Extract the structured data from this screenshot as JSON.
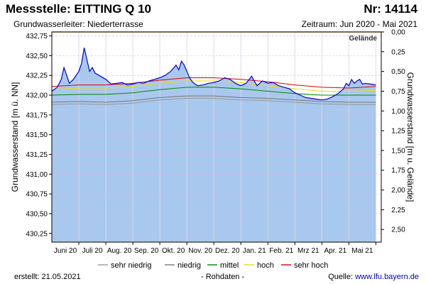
{
  "header": {
    "title": "Messstelle: EITTING Q 10",
    "nr": "Nr: 14114",
    "aquifer": "Grundwasserleiter:   Niederterrasse",
    "period": "Zeitraum: Jun 2020 - Mai 2021"
  },
  "footer": {
    "created": "erstellt:  21.05.2021",
    "rawdata": "- Rohdaten -",
    "source_label": "Quelle: ",
    "source_link": "www.lfu.bayern.de"
  },
  "colors": {
    "fill": "#a9c8ee",
    "measured": "#0000dd",
    "sehr_niedrig": "#999999",
    "niedrig": "#777777",
    "mittel": "#008800",
    "hoch": "#eedd00",
    "sehr_hoch": "#dd0000",
    "ground": "#e8a040",
    "grid": "#e0b0e0"
  },
  "chart_data": {
    "type": "line",
    "title": "Messstelle: EITTING Q 10",
    "ylabel": "Grundwasserstand [m ü. NN]",
    "ylabel_right": "Grundwasserstand [m u. Gelände]",
    "ylim": [
      430.14,
      432.8
    ],
    "y_ticks": [
      432.75,
      432.5,
      432.25,
      432.0,
      431.75,
      431.5,
      431.25,
      431.0,
      430.75,
      430.5,
      430.25
    ],
    "y_tick_labels": [
      "432,75",
      "432,50",
      "432,25",
      "432,00",
      "431,75",
      "431,50",
      "431,25",
      "431,00",
      "430,75",
      "430,50",
      "430,25"
    ],
    "y2_ticks": [
      0.0,
      0.25,
      0.5,
      0.75,
      1.0,
      1.25,
      1.5,
      1.75,
      2.0,
      2.25,
      2.5
    ],
    "y2_tick_labels": [
      "0,00",
      "0,25",
      "0,50",
      "0,75",
      "1,00",
      "1,25",
      "1,50",
      "1,75",
      "2,00",
      "2,25",
      "2,50"
    ],
    "ground_level": 432.8,
    "ground_label": "Gelände",
    "xlim": [
      0,
      12.2
    ],
    "month_labels": [
      {
        "label": "Juni 20",
        "x": 0.5
      },
      {
        "label": "Juli 20",
        "x": 1.5
      },
      {
        "label": "Aug. 20",
        "x": 2.5
      },
      {
        "label": "Sep. 20",
        "x": 3.5
      },
      {
        "label": "Okt. 20",
        "x": 4.5
      },
      {
        "label": "Nov. 20",
        "x": 5.5
      },
      {
        "label": "Dez. 20",
        "x": 6.5
      },
      {
        "label": "Jan. 21",
        "x": 7.5
      },
      {
        "label": "Feb. 21",
        "x": 8.5
      },
      {
        "label": "Mrz 21",
        "x": 9.5
      },
      {
        "label": "Apr. 21",
        "x": 10.5
      },
      {
        "label": "Mai 21",
        "x": 11.5
      }
    ],
    "month_boundaries": [
      1,
      2,
      3,
      4,
      5,
      6,
      7,
      8,
      9,
      10,
      11,
      12
    ],
    "series": [
      {
        "name": "Messwert",
        "x": [
          0,
          0.2,
          0.35,
          0.45,
          0.55,
          0.65,
          0.8,
          1.0,
          1.1,
          1.2,
          1.3,
          1.4,
          1.5,
          1.6,
          1.8,
          2.0,
          2.2,
          2.4,
          2.6,
          2.8,
          3.0,
          3.2,
          3.4,
          3.6,
          3.8,
          4.0,
          4.2,
          4.4,
          4.6,
          4.7,
          4.8,
          4.9,
          5.0,
          5.1,
          5.2,
          5.3,
          5.4,
          5.6,
          5.8,
          6.0,
          6.2,
          6.4,
          6.6,
          6.8,
          7.0,
          7.2,
          7.4,
          7.6,
          7.8,
          8.0,
          8.2,
          8.4,
          8.6,
          8.8,
          9.0,
          9.2,
          9.4,
          9.6,
          9.8,
          10.0,
          10.2,
          10.4,
          10.6,
          10.8,
          10.9,
          11.0,
          11.1,
          11.2,
          11.3,
          11.4,
          11.5,
          11.6,
          11.8,
          12.0
        ],
        "values": [
          432.05,
          432.1,
          432.2,
          432.35,
          432.25,
          432.15,
          432.2,
          432.3,
          432.4,
          432.6,
          432.45,
          432.3,
          432.35,
          432.28,
          432.24,
          432.2,
          432.14,
          432.15,
          432.16,
          432.13,
          432.14,
          432.16,
          432.15,
          432.18,
          432.2,
          432.22,
          432.25,
          432.3,
          432.38,
          432.32,
          432.43,
          432.38,
          432.3,
          432.22,
          432.17,
          432.14,
          432.12,
          432.13,
          432.15,
          432.16,
          432.18,
          432.22,
          432.2,
          432.15,
          432.12,
          432.15,
          432.24,
          432.12,
          432.18,
          432.15,
          432.16,
          432.12,
          432.1,
          432.08,
          432.03,
          432.0,
          431.97,
          431.96,
          431.95,
          431.94,
          431.95,
          431.98,
          432.02,
          432.08,
          432.15,
          432.12,
          432.2,
          432.15,
          432.18,
          432.2,
          432.14,
          432.15,
          432.14,
          432.13
        ]
      },
      {
        "name": "sehr niedrig",
        "x": [
          0,
          1,
          2,
          3,
          4,
          5,
          6,
          7,
          8,
          9,
          10,
          11,
          12
        ],
        "values": [
          431.88,
          431.89,
          431.88,
          431.9,
          431.94,
          431.96,
          431.96,
          431.94,
          431.93,
          431.91,
          431.89,
          431.88,
          431.88
        ]
      },
      {
        "name": "niedrig",
        "x": [
          0,
          1,
          2,
          3,
          4,
          5,
          6,
          7,
          8,
          9,
          10,
          11,
          12
        ],
        "values": [
          431.91,
          431.92,
          431.91,
          431.93,
          431.97,
          431.99,
          431.99,
          431.97,
          431.96,
          431.94,
          431.92,
          431.91,
          431.91
        ]
      },
      {
        "name": "mittel",
        "x": [
          0,
          1,
          2,
          3,
          4,
          5,
          6,
          7,
          8,
          9,
          10,
          11,
          12
        ],
        "values": [
          432.0,
          432.01,
          432.01,
          432.03,
          432.07,
          432.1,
          432.1,
          432.08,
          432.05,
          432.02,
          432.0,
          432.0,
          432.0
        ]
      },
      {
        "name": "hoch",
        "x": [
          0,
          1,
          2,
          3,
          4,
          5,
          6,
          7,
          8,
          9,
          10,
          11,
          12
        ],
        "values": [
          432.07,
          432.09,
          432.09,
          432.11,
          432.15,
          432.18,
          432.18,
          432.16,
          432.12,
          432.08,
          432.05,
          432.05,
          432.06
        ]
      },
      {
        "name": "sehr hoch",
        "x": [
          0,
          1,
          2,
          3,
          4,
          5,
          6,
          7,
          8,
          9,
          10,
          11,
          12
        ],
        "values": [
          432.11,
          432.13,
          432.13,
          432.15,
          432.19,
          432.22,
          432.22,
          432.2,
          432.17,
          432.13,
          432.1,
          432.09,
          432.11
        ]
      }
    ],
    "legend": [
      "sehr niedrig",
      "niedrig",
      "mittel",
      "hoch",
      "sehr hoch"
    ]
  }
}
